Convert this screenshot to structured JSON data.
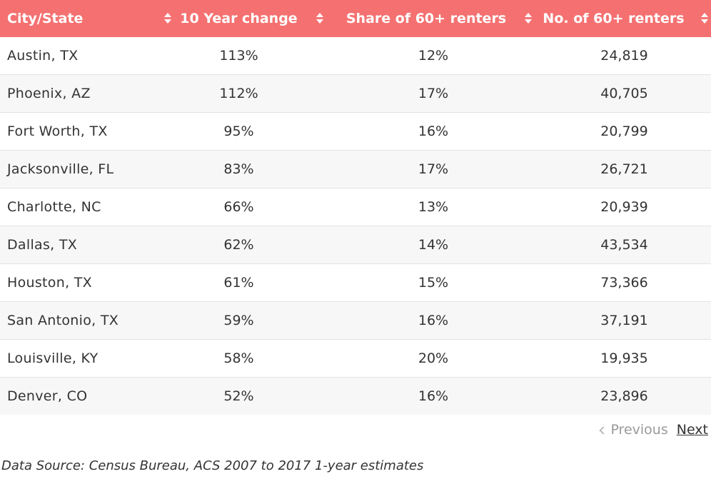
{
  "table": {
    "headers": [
      "City/State",
      "10 Year change",
      "Share of 60+ renters",
      "No. of 60+ renters"
    ],
    "rows": [
      [
        "Austin, TX",
        "113%",
        "12%",
        "24,819"
      ],
      [
        "Phoenix, AZ",
        "112%",
        "17%",
        "40,705"
      ],
      [
        "Fort Worth, TX",
        "95%",
        "16%",
        "20,799"
      ],
      [
        "Jacksonville, FL",
        "83%",
        "17%",
        "26,721"
      ],
      [
        "Charlotte, NC",
        "66%",
        "13%",
        "20,939"
      ],
      [
        "Dallas, TX",
        "62%",
        "14%",
        "43,534"
      ],
      [
        "Houston, TX",
        "61%",
        "15%",
        "73,366"
      ],
      [
        "San Antonio, TX",
        "59%",
        "16%",
        "37,191"
      ],
      [
        "Louisville, KY",
        "58%",
        "20%",
        "19,935"
      ],
      [
        "Denver, CO",
        "52%",
        "16%",
        "23,896"
      ]
    ]
  },
  "pagination": {
    "previous_label": "Previous",
    "next_label": "Next"
  },
  "source_note": "Data Source: Census Bureau, ACS 2007 to 2017 1-year estimates",
  "colors": {
    "header_bg": "#f57171",
    "header_text": "#ffffff",
    "row_alt": "#f7f7f7",
    "text": "#333333",
    "disabled_text": "#999999"
  },
  "icons": {
    "sort": "sort-icon",
    "previous": "chevron-left-icon"
  }
}
